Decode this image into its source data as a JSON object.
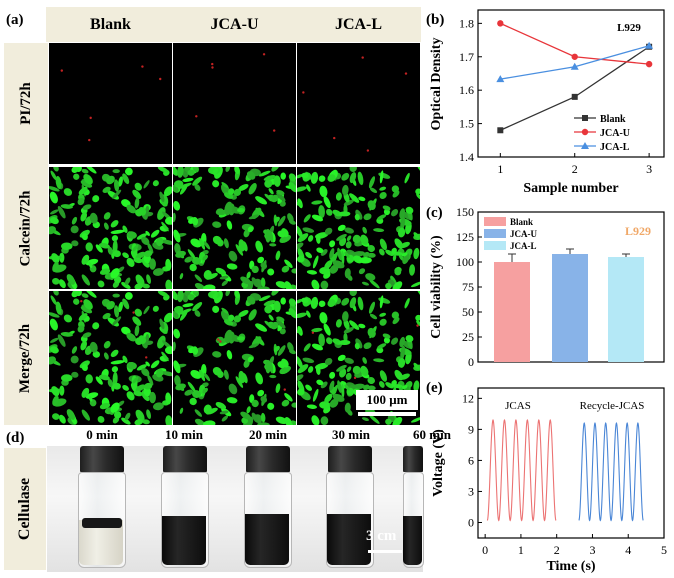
{
  "panel_labels": {
    "a": "(a)",
    "b": "(b)",
    "c": "(c)",
    "d": "(d)",
    "e": "(e)"
  },
  "fluorescence": {
    "columns": [
      "Blank",
      "JCA-U",
      "JCA-L"
    ],
    "rows": [
      "PI/72h",
      "Calcein/72h",
      "Merge/72h"
    ],
    "scale_bar": "100 μm",
    "colors": {
      "green": "#39e639",
      "red": "#c22222"
    }
  },
  "vials": {
    "row_label": "Cellulase",
    "times": [
      "0 min",
      "10 min",
      "20 min",
      "30 min",
      "60 min"
    ],
    "scale_bar": "3 cm"
  },
  "chart_data": [
    {
      "id": "b",
      "type": "line",
      "annotation": "L929",
      "xlabel": "Sample number",
      "ylabel": "Optical Density",
      "x": [
        1,
        2,
        3
      ],
      "xticks": [
        "1",
        "2",
        "3"
      ],
      "xlim": [
        0.7,
        3.2
      ],
      "ylim": [
        1.4,
        1.84
      ],
      "yticks": [
        "1.4",
        "1.5",
        "1.6",
        "1.7",
        "1.8"
      ],
      "legend_position": "bottom-right",
      "series": [
        {
          "name": "Blank",
          "values": [
            1.48,
            1.58,
            1.73
          ],
          "color": "#333333",
          "marker": "square"
        },
        {
          "name": "JCA-U",
          "values": [
            1.8,
            1.7,
            1.678
          ],
          "color": "#e8353a",
          "marker": "circle"
        },
        {
          "name": "JCA-L",
          "values": [
            1.633,
            1.67,
            1.733
          ],
          "color": "#4a8fe0",
          "marker": "triangle"
        }
      ]
    },
    {
      "id": "c",
      "type": "bar",
      "annotation": "L929",
      "xlabel": "",
      "ylabel": "Cell viability (%)",
      "categories": [
        "Blank",
        "JCA-U",
        "JCA-L"
      ],
      "values": [
        100,
        108,
        105
      ],
      "errors": [
        8,
        5,
        3
      ],
      "colors": [
        "#f6a0a0",
        "#88b3e8",
        "#b4e8f6"
      ],
      "ylim": [
        0,
        150
      ],
      "yticks": [
        "0",
        "25",
        "50",
        "75",
        "100",
        "125",
        "150"
      ],
      "legend_position": "top-left"
    },
    {
      "id": "e",
      "type": "line",
      "xlabel": "Time (s)",
      "ylabel": "Voltage (V)",
      "xlim": [
        -0.2,
        5.0
      ],
      "ylim": [
        -1.5,
        13
      ],
      "xticks": [
        "0",
        "1",
        "2",
        "3",
        "4",
        "5"
      ],
      "yticks": [
        "0",
        "3",
        "6",
        "9",
        "12"
      ],
      "series": [
        {
          "name": "JCAS",
          "color": "#ec7373",
          "t_start": 0.06,
          "t_end": 1.98,
          "cycles": 6,
          "vmin": 0.2,
          "vmax": 9.9
        },
        {
          "name": "Recycle-JCAS",
          "color": "#4a86d6",
          "t_start": 2.62,
          "t_end": 4.42,
          "cycles": 6,
          "vmin": 0.2,
          "vmax": 9.6
        }
      ]
    }
  ]
}
